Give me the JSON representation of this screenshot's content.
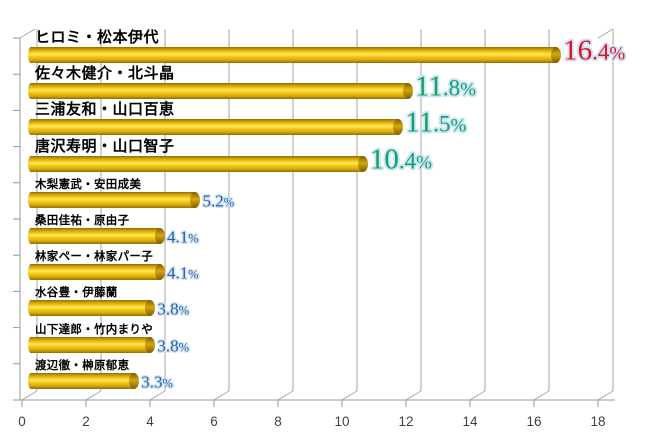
{
  "chart_data": {
    "type": "bar",
    "orientation": "horizontal",
    "style": "3d-cylinder",
    "title": "",
    "xlabel": "",
    "ylabel": "",
    "categories": [
      "ヒロミ・松本伊代",
      "佐々木健介・北斗晶",
      "三浦友和・山口百恵",
      "唐沢寿明・山口智子",
      "木梨憲武・安田成美",
      "桑田佳祐・原由子",
      "林家ペー・林家パー子",
      "水谷豊・伊藤蘭",
      "山下達郎・竹内まりや",
      "渡辺徹・榊原郁恵"
    ],
    "values": [
      16.4,
      11.8,
      11.5,
      10.4,
      5.2,
      4.1,
      4.1,
      3.8,
      3.8,
      3.3
    ],
    "data_labels": [
      "16.4%",
      "11.8%",
      "11.5%",
      "10.4%",
      "5.2%",
      "4.1%",
      "4.1%",
      "3.8%",
      "3.8%",
      "3.3%"
    ],
    "label_colors": [
      "#e01220",
      "#0fa263",
      "#0fa263",
      "#0fa263",
      "#2e5f9e",
      "#2e5f9e",
      "#2e5f9e",
      "#2e5f9e",
      "#2e5f9e",
      "#2e5f9e"
    ],
    "label_sizes": [
      "large",
      "large",
      "large",
      "large",
      "small",
      "small",
      "small",
      "small",
      "small",
      "small"
    ],
    "xlim": [
      0,
      18
    ],
    "x_ticks": [
      "0",
      "2",
      "4",
      "6",
      "8",
      "10",
      "12",
      "14",
      "16",
      "18"
    ],
    "grid": true,
    "legend": false,
    "bar_color": "#f6ca18",
    "halo_color": "#cfe4f7",
    "gridline_color": "#a6a6a6"
  }
}
